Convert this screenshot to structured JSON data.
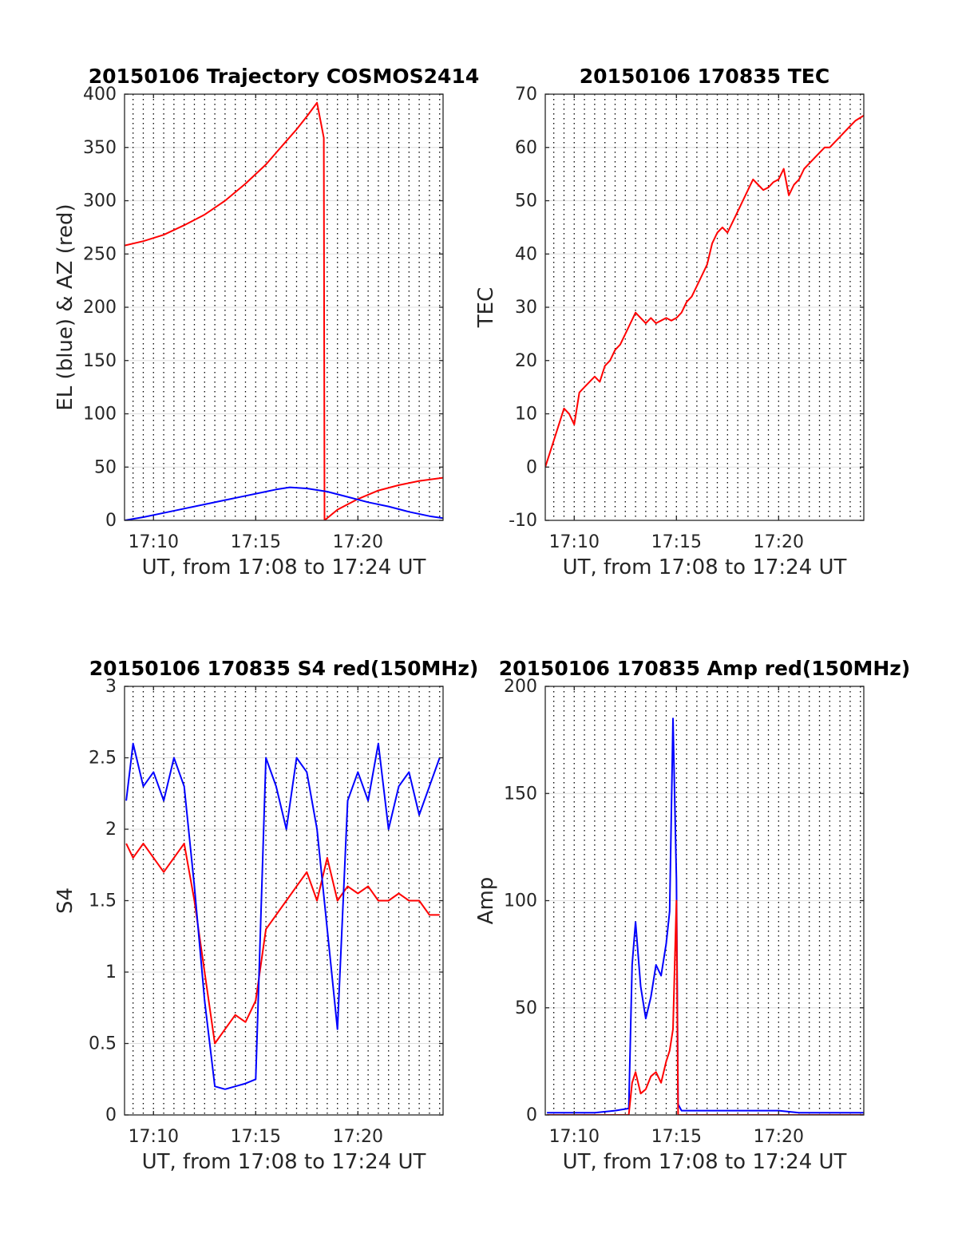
{
  "figure": {
    "background": "#ffffff",
    "series_colors": {
      "red": "#ff0000",
      "blue": "#0000ff"
    }
  },
  "chart_data": [
    {
      "type": "line",
      "title": "20150106 Trajectory COSMOS2414",
      "xlabel": "UT, from 17:08 to 17:24 UT",
      "ylabel": "EL (blue) & AZ (red)",
      "xlim": [
        "17:08:35",
        "17:24:10"
      ],
      "ylim": [
        0,
        400
      ],
      "xticks": [
        "17:10",
        "17:15",
        "17:20"
      ],
      "yticks": [
        0,
        50,
        100,
        150,
        200,
        250,
        300,
        350,
        400
      ],
      "grid": true,
      "series": [
        {
          "color": "#ff0000",
          "x": [
            "17:08:35",
            "17:09:30",
            "17:10:30",
            "17:11:30",
            "17:12:30",
            "17:13:30",
            "17:14:30",
            "17:15:30",
            "17:16:00",
            "17:16:30",
            "17:17:00",
            "17:17:30",
            "17:18:00",
            "17:18:20",
            "17:18:22",
            "17:19:00",
            "17:20:00",
            "17:21:00",
            "17:22:00",
            "17:23:00",
            "17:24:10"
          ],
          "y": [
            258,
            262,
            268,
            277,
            287,
            300,
            316,
            334,
            345,
            356,
            367,
            379,
            392,
            359,
            0,
            10,
            20,
            28,
            33,
            37,
            40
          ]
        },
        {
          "color": "#0000ff",
          "x": [
            "17:08:35",
            "17:09:30",
            "17:10:30",
            "17:11:30",
            "17:12:30",
            "17:13:30",
            "17:14:30",
            "17:15:30",
            "17:16:00",
            "17:16:40",
            "17:17:30",
            "17:18:30",
            "17:19:30",
            "17:20:30",
            "17:21:30",
            "17:22:30",
            "17:23:30",
            "17:24:10"
          ],
          "y": [
            0,
            3,
            7,
            11,
            15,
            19,
            23,
            27,
            29,
            31,
            30,
            27,
            22,
            17,
            13,
            8,
            4,
            2
          ]
        }
      ]
    },
    {
      "type": "line",
      "title": "20150106 170835 TEC",
      "xlabel": "UT, from 17:08 to 17:24 UT",
      "ylabel": "TEC",
      "xlim": [
        "17:08:35",
        "17:24:10"
      ],
      "ylim": [
        -10,
        70
      ],
      "xticks": [
        "17:10",
        "17:15",
        "17:20"
      ],
      "yticks": [
        -10,
        0,
        10,
        20,
        30,
        40,
        50,
        60,
        70
      ],
      "grid": true,
      "series": [
        {
          "color": "#ff0000",
          "x": [
            "17:08:35",
            "17:09:00",
            "17:09:20",
            "17:09:30",
            "17:09:45",
            "17:10:00",
            "17:10:15",
            "17:10:30",
            "17:10:45",
            "17:11:00",
            "17:11:15",
            "17:11:30",
            "17:11:45",
            "17:12:00",
            "17:12:15",
            "17:12:30",
            "17:12:45",
            "17:13:00",
            "17:13:15",
            "17:13:30",
            "17:13:45",
            "17:14:00",
            "17:14:15",
            "17:14:30",
            "17:14:45",
            "17:15:00",
            "17:15:15",
            "17:15:30",
            "17:15:45",
            "17:16:00",
            "17:16:15",
            "17:16:30",
            "17:16:45",
            "17:17:00",
            "17:17:15",
            "17:17:30",
            "17:17:45",
            "17:18:00",
            "17:18:15",
            "17:18:30",
            "17:18:45",
            "17:19:00",
            "17:19:15",
            "17:19:30",
            "17:19:45",
            "17:20:00",
            "17:20:15",
            "17:20:30",
            "17:20:45",
            "17:21:00",
            "17:21:15",
            "17:21:30",
            "17:21:45",
            "17:22:00",
            "17:22:15",
            "17:22:30",
            "17:22:45",
            "17:23:00",
            "17:23:15",
            "17:23:30",
            "17:23:45",
            "17:24:10"
          ],
          "y": [
            0,
            5,
            9,
            11,
            10,
            8,
            14,
            15,
            16,
            17,
            16,
            19,
            20,
            22,
            23,
            25,
            27,
            29,
            28,
            27,
            28,
            27,
            27.5,
            28,
            27.5,
            28,
            29,
            31,
            32,
            34,
            36,
            38,
            42,
            44,
            45,
            44,
            46,
            48,
            50,
            52,
            54,
            53,
            52,
            52.5,
            53.5,
            54,
            56,
            51,
            53,
            54,
            56,
            57,
            58,
            59,
            60,
            60,
            61,
            62,
            63,
            64,
            65,
            66
          ]
        }
      ]
    },
    {
      "type": "line",
      "title": "20150106 170835 S4 red(150MHz)",
      "xlabel": "UT, from 17:08 to 17:24 UT",
      "ylabel": "S4",
      "xlim": [
        "17:08:35",
        "17:24:10"
      ],
      "ylim": [
        0,
        3
      ],
      "xticks": [
        "17:10",
        "17:15",
        "17:20"
      ],
      "yticks": [
        0,
        0.5,
        1,
        1.5,
        2,
        2.5,
        3
      ],
      "grid": true,
      "series": [
        {
          "color": "#ff0000",
          "x": [
            "17:08:40",
            "17:09:00",
            "17:09:30",
            "17:10:00",
            "17:10:30",
            "17:11:00",
            "17:11:30",
            "17:12:00",
            "17:12:30",
            "17:13:00",
            "17:13:30",
            "17:14:00",
            "17:14:30",
            "17:15:00",
            "17:15:30",
            "17:16:00",
            "17:16:30",
            "17:17:00",
            "17:17:30",
            "17:18:00",
            "17:18:30",
            "17:19:00",
            "17:19:30",
            "17:20:00",
            "17:20:30",
            "17:21:00",
            "17:21:30",
            "17:22:00",
            "17:22:30",
            "17:23:00",
            "17:23:30",
            "17:24:00"
          ],
          "y": [
            1.9,
            1.8,
            1.9,
            1.8,
            1.7,
            1.8,
            1.9,
            1.5,
            1.0,
            0.5,
            0.6,
            0.7,
            0.65,
            0.8,
            1.3,
            1.4,
            1.5,
            1.6,
            1.7,
            1.5,
            1.8,
            1.5,
            1.6,
            1.55,
            1.6,
            1.5,
            1.5,
            1.55,
            1.5,
            1.5,
            1.4,
            1.4
          ]
        },
        {
          "color": "#0000ff",
          "x": [
            "17:08:40",
            "17:09:00",
            "17:09:30",
            "17:10:00",
            "17:10:30",
            "17:11:00",
            "17:11:30",
            "17:12:00",
            "17:12:30",
            "17:13:00",
            "17:13:30",
            "17:14:00",
            "17:14:30",
            "17:15:00",
            "17:15:30",
            "17:16:00",
            "17:16:30",
            "17:17:00",
            "17:17:30",
            "17:18:00",
            "17:18:30",
            "17:19:00",
            "17:19:30",
            "17:20:00",
            "17:20:30",
            "17:21:00",
            "17:21:30",
            "17:22:00",
            "17:22:30",
            "17:23:00",
            "17:23:30",
            "17:24:00"
          ],
          "y": [
            2.2,
            2.6,
            2.3,
            2.4,
            2.2,
            2.5,
            2.3,
            1.6,
            0.8,
            0.2,
            0.18,
            0.2,
            0.22,
            0.25,
            2.5,
            2.3,
            2.0,
            2.5,
            2.4,
            2.0,
            1.3,
            0.6,
            2.2,
            2.4,
            2.2,
            2.6,
            2.0,
            2.3,
            2.4,
            2.1,
            2.3,
            2.5
          ]
        }
      ]
    },
    {
      "type": "line",
      "title": "20150106 170835 Amp red(150MHz)",
      "xlabel": "UT, from 17:08 to 17:24 UT",
      "ylabel": "Amp",
      "xlim": [
        "17:08:35",
        "17:24:10"
      ],
      "ylim": [
        0,
        200
      ],
      "xticks": [
        "17:10",
        "17:15",
        "17:20"
      ],
      "yticks": [
        0,
        50,
        100,
        150,
        200
      ],
      "grid": true,
      "series": [
        {
          "color": "#0000ff",
          "x": [
            "17:08:40",
            "17:10:00",
            "17:11:00",
            "17:12:00",
            "17:12:40",
            "17:12:50",
            "17:13:00",
            "17:13:15",
            "17:13:30",
            "17:13:45",
            "17:14:00",
            "17:14:15",
            "17:14:30",
            "17:14:40",
            "17:14:50",
            "17:15:00",
            "17:15:05",
            "17:15:15",
            "17:16:00",
            "17:17:00",
            "17:18:00",
            "17:19:00",
            "17:20:00",
            "17:21:00",
            "17:22:00",
            "17:23:00",
            "17:24:10"
          ],
          "y": [
            1,
            1,
            1,
            2,
            3,
            70,
            90,
            60,
            45,
            55,
            70,
            65,
            80,
            95,
            185,
            110,
            5,
            2,
            2,
            2,
            2,
            2,
            2,
            1,
            1,
            1,
            1
          ]
        },
        {
          "color": "#ff0000",
          "x": [
            "17:08:40",
            "17:12:40",
            "17:12:50",
            "17:13:00",
            "17:13:15",
            "17:13:30",
            "17:13:45",
            "17:14:00",
            "17:14:15",
            "17:14:30",
            "17:14:40",
            "17:14:50",
            "17:15:00",
            "17:15:05",
            "17:24:10"
          ],
          "y": [
            0,
            0,
            15,
            20,
            10,
            12,
            18,
            20,
            15,
            25,
            30,
            40,
            100,
            0,
            0
          ]
        }
      ]
    }
  ]
}
